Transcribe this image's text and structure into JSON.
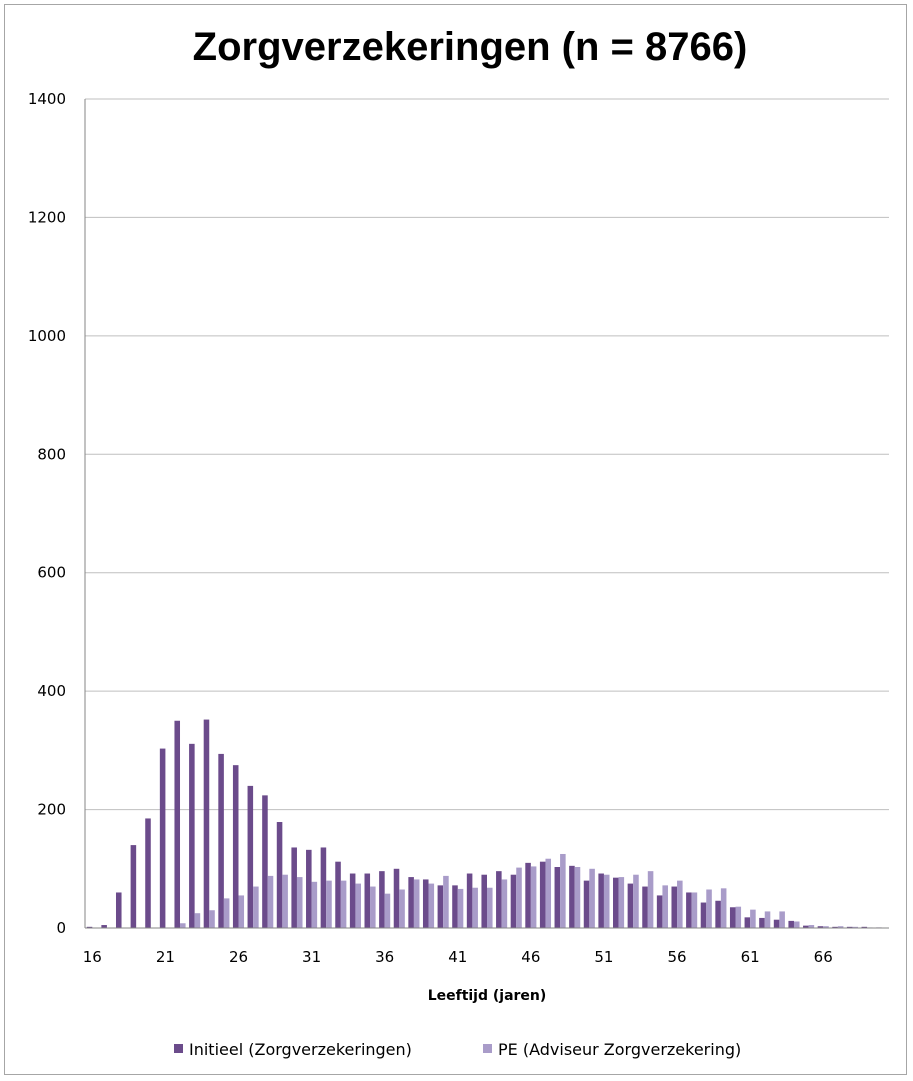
{
  "chart_data": {
    "type": "bar",
    "title": "Zorgverzekeringen (n = 8766)",
    "xlabel": "Leeftijd (jaren)",
    "ylabel": "",
    "ylim": [
      0,
      1400
    ],
    "yticks": [
      "0",
      "200",
      "400",
      "600",
      "800",
      "1000",
      "1200",
      "1400"
    ],
    "xtick_labels": [
      "16",
      "21",
      "26",
      "31",
      "36",
      "41",
      "46",
      "51",
      "56",
      "61",
      "66"
    ],
    "grid": true,
    "legend_position": "bottom",
    "categories": [
      "16",
      "17",
      "18",
      "19",
      "20",
      "21",
      "22",
      "23",
      "24",
      "25",
      "26",
      "27",
      "28",
      "29",
      "30",
      "31",
      "32",
      "33",
      "34",
      "35",
      "36",
      "37",
      "38",
      "39",
      "40",
      "41",
      "42",
      "43",
      "44",
      "45",
      "46",
      "47",
      "48",
      "49",
      "50",
      "51",
      "52",
      "53",
      "54",
      "55",
      "56",
      "57",
      "58",
      "59",
      "60",
      "61",
      "62",
      "63",
      "64",
      "65",
      "66",
      "67",
      "68",
      "69",
      "70"
    ],
    "series": [
      {
        "name": "Initieel (Zorgverzekeringen)",
        "color": "#6b4b8b",
        "values": [
          2,
          5,
          60,
          140,
          185,
          303,
          350,
          311,
          352,
          294,
          275,
          240,
          224,
          179,
          136,
          132,
          136,
          112,
          92,
          92,
          96,
          100,
          86,
          82,
          72,
          72,
          92,
          90,
          96,
          90,
          110,
          112,
          103,
          105,
          80,
          92,
          85,
          75,
          70,
          55,
          70,
          60,
          43,
          46,
          35,
          18,
          17,
          14,
          12,
          4,
          3,
          2,
          2,
          2,
          1
        ]
      },
      {
        "name": "PE (Adviseur Zorgverzekering)",
        "color": "#a99cc9",
        "values": [
          0,
          0,
          0,
          0,
          0,
          0,
          8,
          25,
          30,
          50,
          55,
          70,
          88,
          90,
          86,
          78,
          80,
          80,
          75,
          70,
          58,
          65,
          82,
          75,
          88,
          66,
          68,
          68,
          82,
          102,
          104,
          117,
          125,
          103,
          100,
          90,
          86,
          90,
          96,
          72,
          80,
          60,
          65,
          67,
          36,
          31,
          28,
          28,
          11,
          5,
          3,
          3,
          2,
          1,
          0
        ]
      }
    ]
  }
}
